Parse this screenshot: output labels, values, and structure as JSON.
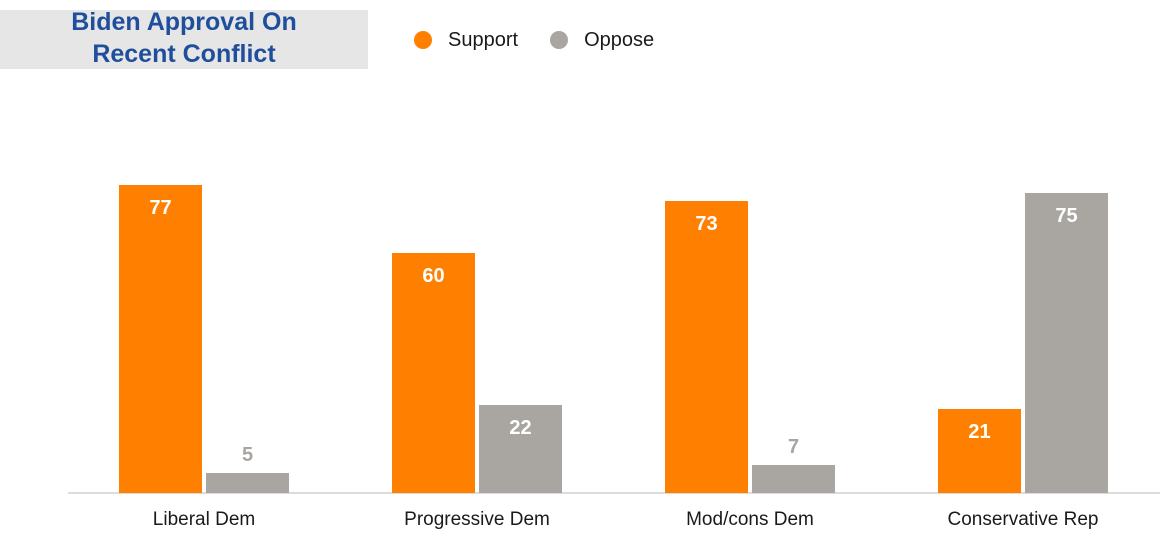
{
  "title": "Biden Approval On\nRecent Conflict",
  "legend": [
    {
      "label": "Support",
      "color": "#ff8000"
    },
    {
      "label": "Oppose",
      "color": "#a9a6a1"
    }
  ],
  "chart_data": {
    "type": "bar",
    "title": "Biden Approval On\nRecent Conflict",
    "categories": [
      "Liberal Dem",
      "Progressive Dem",
      "Mod/cons Dem",
      "Conservative Rep"
    ],
    "series": [
      {
        "name": "Support",
        "color": "#ff8000",
        "values": [
          77,
          60,
          73,
          21
        ]
      },
      {
        "name": "Oppose",
        "color": "#a9a6a1",
        "values": [
          5,
          22,
          7,
          75
        ]
      }
    ],
    "ylim": [
      0,
      100
    ],
    "grid": false,
    "legend_position": "top"
  }
}
